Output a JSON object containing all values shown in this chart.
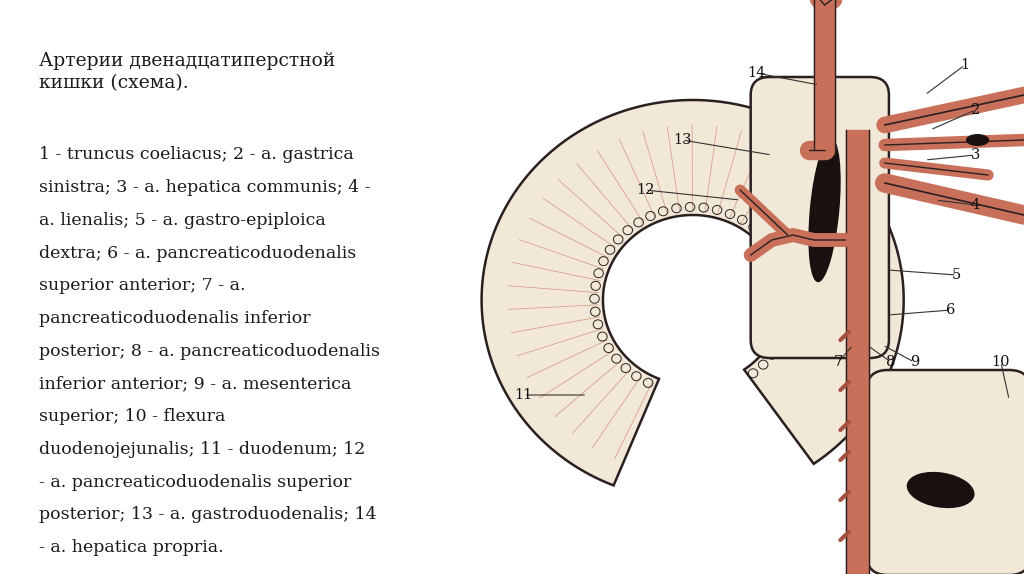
{
  "bg_color": "#ffffff",
  "text_color": "#1a1a1a",
  "title": "Артерии двенадцатиперстной\nкишки (схема).",
  "description_lines": [
    "1 - truncus coeliacus; 2 - a. gastrica",
    "sinistra; 3 - a. hepatica communis; 4 -",
    "a. lienalis; 5 - a. gastro-epiploica",
    "dextra; 6 - a. pancreaticoduodenalis",
    "superior anterior; 7 - a.",
    "pancreaticoduodenalis inferior",
    "posterior; 8 - a. pancreaticoduodenalis",
    "inferior anterior; 9 - a. mesenterica",
    "superior; 10 - flexura",
    "duodenojejunalis; 11 - duodenum; 12",
    "- a. pancreaticoduodenalis superior",
    "posterior; 13 - a. gastroduodenalis; 14",
    "- a. hepatica propria."
  ],
  "cream": "#f2e8d8",
  "salmon": "#c8705a",
  "salmon_light": "#dda090",
  "salmon_dark": "#a85040",
  "outline": "#2a2020",
  "dark_mark": "#1a1010",
  "label_color": "#111111",
  "leader_color": "#333333"
}
